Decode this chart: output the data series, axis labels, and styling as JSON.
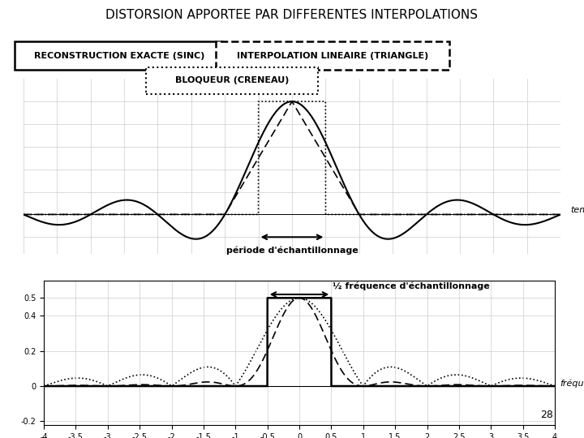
{
  "title": "DISTORSION APPORTEE PAR DIFFERENTES INTERPOLATIONS",
  "title_fontsize": 11,
  "bg_color": "#ffffff",
  "legend_sinc": "RECONSTRUCTION EXACTE (SINC)",
  "legend_triangle": "INTERPOLATION LINEAIRE (TRIANGLE)",
  "legend_bloqueur": "BLOQUEUR (CRENEAU)",
  "xlabel_top": "temps",
  "xlabel_bottom": "fréquence",
  "periode_label": "période d'échantillonnage",
  "freq_label": "½ fréquence d'échantillonnage",
  "page_number": "28"
}
